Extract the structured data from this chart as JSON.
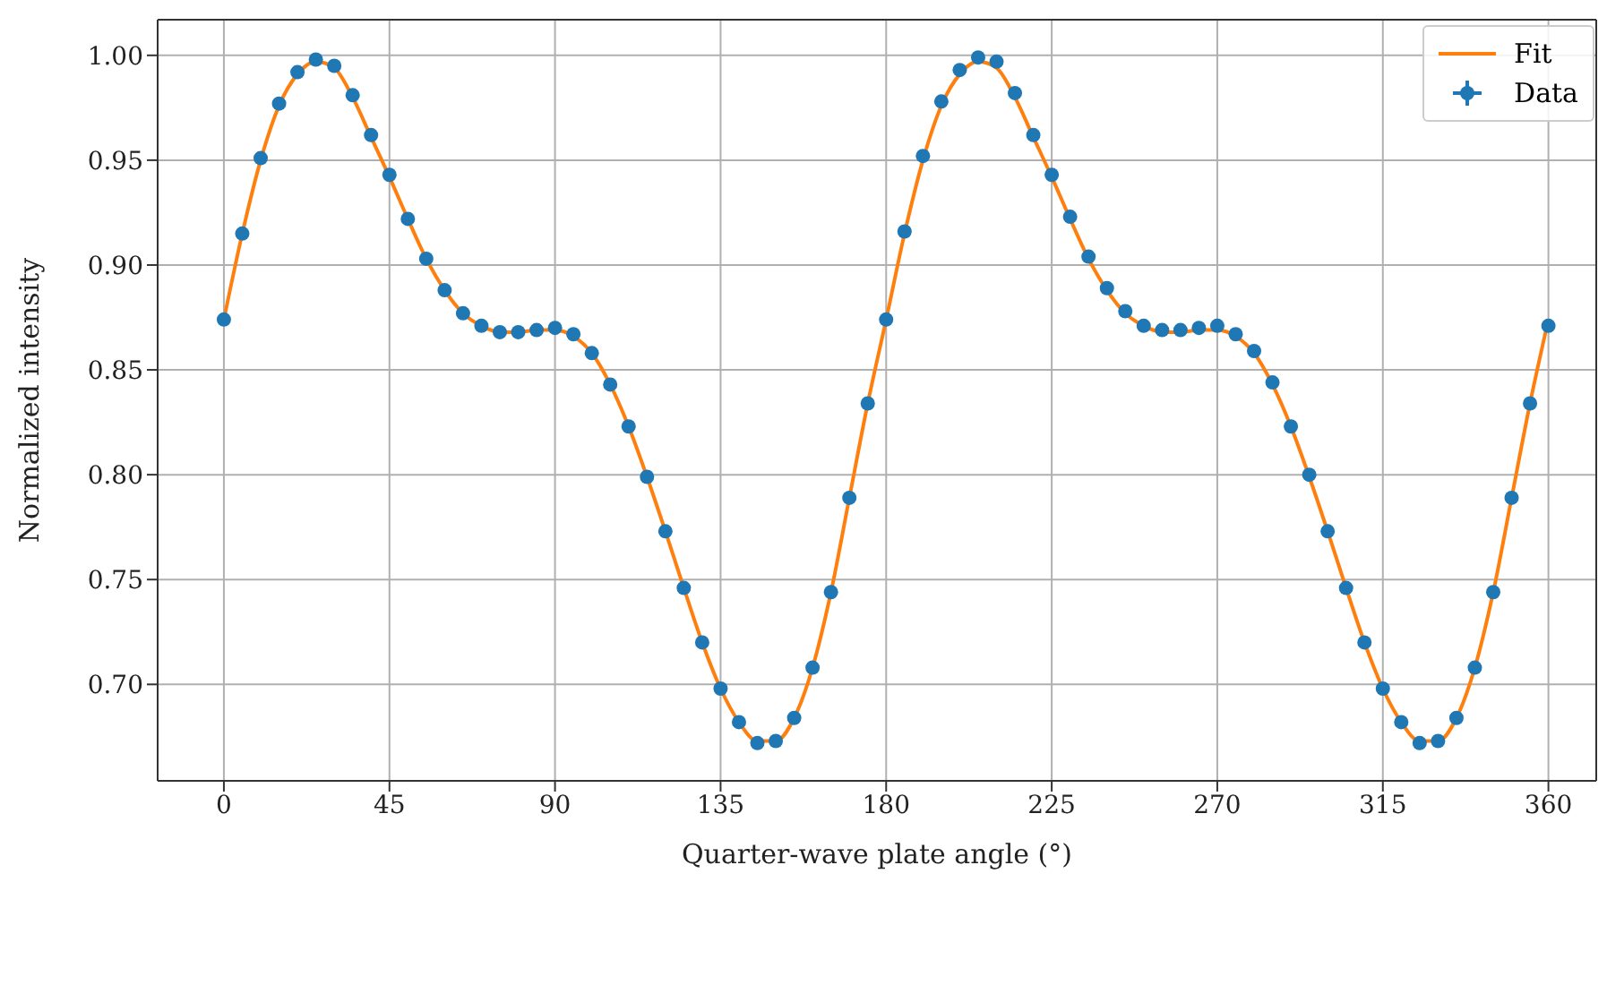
{
  "chart_data": {
    "type": "scatter",
    "xlabel": "Quarter-wave plate angle (°)",
    "ylabel": "Normalized intensity",
    "x": [
      0,
      5,
      10,
      15,
      20,
      25,
      30,
      35,
      40,
      45,
      50,
      55,
      60,
      65,
      70,
      75,
      80,
      85,
      90,
      95,
      100,
      105,
      110,
      115,
      120,
      125,
      130,
      135,
      140,
      145,
      150,
      155,
      160,
      165,
      170,
      175,
      180,
      185,
      190,
      195,
      200,
      205,
      210,
      215,
      220,
      225,
      230,
      235,
      240,
      245,
      250,
      255,
      260,
      265,
      270,
      275,
      280,
      285,
      290,
      295,
      300,
      305,
      310,
      315,
      320,
      325,
      330,
      335,
      340,
      345,
      350,
      355,
      360
    ],
    "series": [
      {
        "name": "Fit",
        "type": "line",
        "color": "#ff7f0e",
        "values": [
          0.874,
          0.915,
          0.95,
          0.976,
          0.991,
          0.997,
          0.994,
          0.98,
          0.961,
          0.942,
          0.922,
          0.903,
          0.888,
          0.877,
          0.871,
          0.868,
          0.868,
          0.869,
          0.869,
          0.866,
          0.858,
          0.843,
          0.823,
          0.799,
          0.773,
          0.746,
          0.72,
          0.698,
          0.682,
          0.673,
          0.673,
          0.684,
          0.708,
          0.744,
          0.789,
          0.834,
          0.874,
          0.915,
          0.95,
          0.976,
          0.991,
          0.997,
          0.994,
          0.98,
          0.961,
          0.942,
          0.922,
          0.903,
          0.888,
          0.877,
          0.871,
          0.868,
          0.868,
          0.869,
          0.869,
          0.866,
          0.858,
          0.843,
          0.823,
          0.799,
          0.773,
          0.746,
          0.72,
          0.698,
          0.682,
          0.673,
          0.673,
          0.684,
          0.708,
          0.744,
          0.789,
          0.834,
          0.874
        ]
      },
      {
        "name": "Data",
        "marker": "circle",
        "color": "#1f77b4",
        "values": [
          0.874,
          0.915,
          0.951,
          0.977,
          0.992,
          0.998,
          0.995,
          0.981,
          0.962,
          0.943,
          0.922,
          0.903,
          0.888,
          0.877,
          0.871,
          0.868,
          0.868,
          0.869,
          0.87,
          0.867,
          0.858,
          0.843,
          0.823,
          0.799,
          0.773,
          0.746,
          0.72,
          0.698,
          0.682,
          0.672,
          0.673,
          0.684,
          0.708,
          0.744,
          0.789,
          0.834,
          0.874,
          0.916,
          0.952,
          0.978,
          0.993,
          0.999,
          0.997,
          0.982,
          0.962,
          0.943,
          0.923,
          0.904,
          0.889,
          0.878,
          0.871,
          0.869,
          0.869,
          0.87,
          0.871,
          0.867,
          0.859,
          0.844,
          0.823,
          0.8,
          0.773,
          0.746,
          0.72,
          0.698,
          0.682,
          0.672,
          0.673,
          0.684,
          0.708,
          0.744,
          0.789,
          0.834,
          0.871
        ]
      }
    ],
    "xlim": [
      -18,
      373
    ],
    "xticks": [
      0,
      45,
      90,
      135,
      180,
      225,
      270,
      315,
      360
    ],
    "ylim": [
      0.654,
      1.017
    ],
    "yticks": [
      {
        "value": 0.7,
        "label": "0.70"
      },
      {
        "value": 0.75,
        "label": "0.75"
      },
      {
        "value": 0.8,
        "label": "0.80"
      },
      {
        "value": 0.85,
        "label": "0.85"
      },
      {
        "value": 0.9,
        "label": "0.90"
      },
      {
        "value": 0.95,
        "label": "0.95"
      },
      {
        "value": 1,
        "label": "1.00"
      }
    ],
    "grid": true,
    "legend": "top right"
  }
}
